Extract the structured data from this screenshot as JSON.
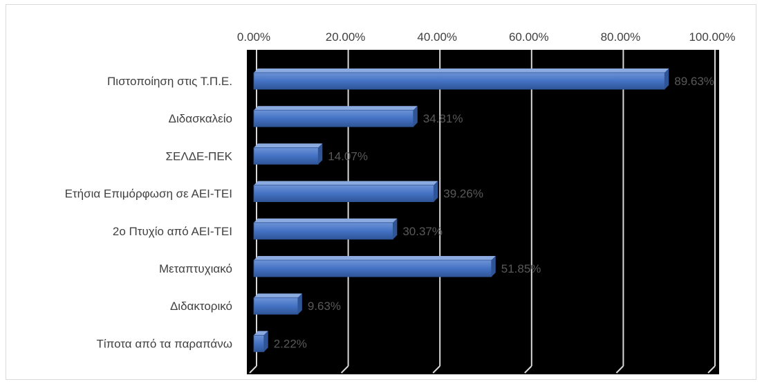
{
  "chart_data": {
    "type": "bar",
    "orientation": "horizontal",
    "categories": [
      "Πιστοποίηση στις Τ.Π.Ε.",
      "Διδασκαλείο",
      "ΣΕΛΔΕ-ΠΕΚ",
      "Ετήσια Επιμόρφωση σε ΑΕΙ-ΤΕΙ",
      "2ο Πτυχίο από ΑΕΙ-ΤΕΙ",
      "Μεταπτυχιακό",
      "Διδακτορικό",
      "Τίποτα από τα παραπάνω"
    ],
    "values": [
      89.63,
      34.81,
      14.07,
      39.26,
      30.37,
      51.85,
      9.63,
      2.22
    ],
    "data_labels": [
      "89.63%",
      "34.81%",
      "14.07%",
      "39.26%",
      "30.37%",
      "51.85%",
      "9.63%",
      "2.22%"
    ],
    "x_ticks": [
      "0.00%",
      "20.00%",
      "40.00%",
      "60.00%",
      "80.00%",
      "100.00%"
    ],
    "x_tick_values": [
      0,
      20,
      40,
      60,
      80,
      100
    ],
    "xlim": [
      0,
      100
    ],
    "x_axis_position": "top",
    "grid": true,
    "legend": "none",
    "plot_background": "#000000",
    "bar_color": "#4472c4",
    "gridline_color": "#d9d9d9",
    "title": "",
    "xlabel": "",
    "ylabel": ""
  }
}
